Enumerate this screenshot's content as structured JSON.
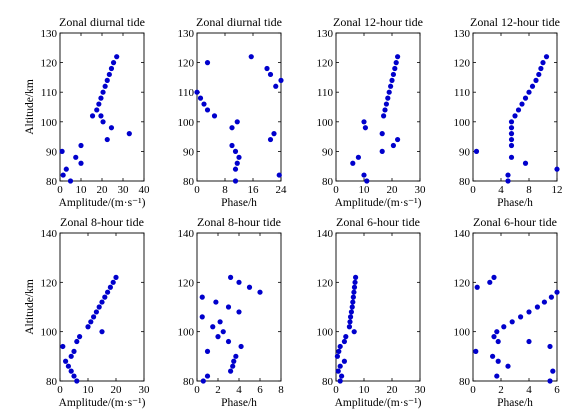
{
  "style": {
    "point_color": "#0000cc",
    "axis_color": "#000000",
    "background": "#ffffff"
  },
  "chart_data": [
    {
      "type": "scatter",
      "title": "Zonal diurnal tide",
      "xlabel": "Amplitude/(m·s⁻¹)",
      "ylabel": "Altitude/km",
      "xlim": [
        0,
        40
      ],
      "ylim": [
        80,
        130
      ],
      "xticks": [
        0,
        10,
        20,
        30,
        40
      ],
      "yticks": [
        80,
        90,
        100,
        110,
        120,
        130
      ],
      "points": [
        [
          27,
          122
        ],
        [
          25.5,
          120
        ],
        [
          24.5,
          118
        ],
        [
          23.5,
          116
        ],
        [
          22.5,
          114
        ],
        [
          21.5,
          112
        ],
        [
          20.5,
          110
        ],
        [
          19.5,
          108
        ],
        [
          18.5,
          106
        ],
        [
          17.5,
          104
        ],
        [
          15.5,
          102
        ],
        [
          19.5,
          102
        ],
        [
          20.5,
          100
        ],
        [
          33,
          96
        ],
        [
          24.5,
          98
        ],
        [
          22.5,
          94
        ],
        [
          10,
          92
        ],
        [
          1,
          90
        ],
        [
          7.5,
          88
        ],
        [
          10,
          86
        ],
        [
          3,
          84
        ],
        [
          1.5,
          82
        ],
        [
          5,
          80
        ]
      ]
    },
    {
      "type": "scatter",
      "title": "Zonal diurnal tide",
      "xlabel": "Phase/h",
      "ylabel": "",
      "xlim": [
        0,
        24
      ],
      "ylim": [
        80,
        130
      ],
      "xticks": [
        0,
        8,
        16,
        24
      ],
      "yticks": [
        80,
        90,
        100,
        110,
        120,
        130
      ],
      "points": [
        [
          3,
          120
        ],
        [
          15.5,
          122
        ],
        [
          20,
          118
        ],
        [
          21,
          116
        ],
        [
          24,
          114
        ],
        [
          22.5,
          112
        ],
        [
          0,
          110
        ],
        [
          1,
          108
        ],
        [
          2,
          106
        ],
        [
          3,
          104
        ],
        [
          5,
          102
        ],
        [
          11.5,
          100
        ],
        [
          10,
          98
        ],
        [
          22,
          96
        ],
        [
          21,
          94
        ],
        [
          10,
          92
        ],
        [
          11,
          90
        ],
        [
          12,
          88
        ],
        [
          11.5,
          86
        ],
        [
          11,
          84
        ],
        [
          23.5,
          82
        ],
        [
          11,
          80
        ]
      ]
    },
    {
      "type": "scatter",
      "title": "Zonal 12-hour tide",
      "xlabel": "Amplitude/(m·s⁻¹)",
      "ylabel": "",
      "xlim": [
        0,
        30
      ],
      "ylim": [
        80,
        130
      ],
      "xticks": [
        0,
        10,
        20,
        30
      ],
      "yticks": [
        80,
        90,
        100,
        110,
        120,
        130
      ],
      "points": [
        [
          22,
          122
        ],
        [
          21.5,
          120
        ],
        [
          21,
          118
        ],
        [
          20.5,
          116
        ],
        [
          20,
          114
        ],
        [
          19.5,
          112
        ],
        [
          19,
          110
        ],
        [
          18.5,
          108
        ],
        [
          18,
          106
        ],
        [
          17.5,
          104
        ],
        [
          17,
          102
        ],
        [
          10,
          100
        ],
        [
          10.5,
          98
        ],
        [
          16.5,
          96
        ],
        [
          22,
          94
        ],
        [
          20.5,
          92
        ],
        [
          16.5,
          90
        ],
        [
          8,
          88
        ],
        [
          6,
          86
        ],
        [
          10,
          82
        ],
        [
          11,
          80
        ]
      ]
    },
    {
      "type": "scatter",
      "title": "Zonal 12-hour tide",
      "xlabel": "Phase/h",
      "ylabel": "",
      "xlim": [
        0,
        12
      ],
      "ylim": [
        80,
        130
      ],
      "xticks": [
        0,
        4,
        8,
        12
      ],
      "yticks": [
        80,
        90,
        100,
        110,
        120,
        130
      ],
      "points": [
        [
          10.5,
          122
        ],
        [
          10,
          120
        ],
        [
          9.7,
          118
        ],
        [
          9.4,
          116
        ],
        [
          9,
          114
        ],
        [
          8.5,
          112
        ],
        [
          8,
          110
        ],
        [
          7.5,
          108
        ],
        [
          7,
          106
        ],
        [
          6.5,
          104
        ],
        [
          6,
          102
        ],
        [
          5.5,
          100
        ],
        [
          5.5,
          98
        ],
        [
          5.5,
          96
        ],
        [
          5.5,
          94
        ],
        [
          5.5,
          92
        ],
        [
          0.5,
          90
        ],
        [
          5.5,
          88
        ],
        [
          7.5,
          86
        ],
        [
          12,
          84
        ],
        [
          5,
          82
        ],
        [
          5,
          80
        ]
      ]
    },
    {
      "type": "scatter",
      "title": "Zonal 8-hour tide",
      "xlabel": "Amplitude/(m·s⁻¹)",
      "ylabel": "Altitude/km",
      "xlim": [
        0,
        30
      ],
      "ylim": [
        80,
        140
      ],
      "xticks": [
        0,
        10,
        20,
        30
      ],
      "yticks": [
        80,
        100,
        120,
        140
      ],
      "points": [
        [
          20,
          122
        ],
        [
          19,
          120
        ],
        [
          18,
          118
        ],
        [
          17,
          116
        ],
        [
          16,
          114
        ],
        [
          15,
          112
        ],
        [
          14,
          110
        ],
        [
          13,
          108
        ],
        [
          12,
          106
        ],
        [
          11,
          104
        ],
        [
          10,
          102
        ],
        [
          15,
          100
        ],
        [
          7,
          98
        ],
        [
          6,
          96
        ],
        [
          1,
          94
        ],
        [
          5,
          92
        ],
        [
          4,
          90
        ],
        [
          2,
          88
        ],
        [
          3,
          86
        ],
        [
          4,
          84
        ],
        [
          5,
          82
        ],
        [
          6,
          80
        ]
      ]
    },
    {
      "type": "scatter",
      "title": "Zonal 8-hour tide",
      "xlabel": "Phase/h",
      "ylabel": "",
      "xlim": [
        0,
        8
      ],
      "ylim": [
        80,
        140
      ],
      "xticks": [
        0,
        2,
        4,
        6,
        8
      ],
      "yticks": [
        80,
        100,
        120,
        140
      ],
      "points": [
        [
          3.2,
          122
        ],
        [
          4,
          120
        ],
        [
          5,
          118
        ],
        [
          6,
          116
        ],
        [
          0.5,
          114
        ],
        [
          1.8,
          112
        ],
        [
          3,
          110
        ],
        [
          4,
          108
        ],
        [
          0.5,
          106
        ],
        [
          2.2,
          104
        ],
        [
          1.5,
          102
        ],
        [
          2.5,
          100
        ],
        [
          2,
          98
        ],
        [
          3,
          96
        ],
        [
          4.2,
          94
        ],
        [
          1,
          92
        ],
        [
          3.7,
          90
        ],
        [
          3.5,
          88
        ],
        [
          3.4,
          86
        ],
        [
          3.2,
          84
        ],
        [
          1,
          82
        ],
        [
          0.6,
          80
        ]
      ]
    },
    {
      "type": "scatter",
      "title": "Zonal 6-hour tide",
      "xlabel": "Amplitude/(m·s⁻¹)",
      "ylabel": "",
      "xlim": [
        0,
        30
      ],
      "ylim": [
        80,
        140
      ],
      "xticks": [
        0,
        10,
        20,
        30
      ],
      "yticks": [
        80,
        100,
        120,
        140
      ],
      "points": [
        [
          7,
          122
        ],
        [
          6.8,
          120
        ],
        [
          6.6,
          118
        ],
        [
          6.4,
          116
        ],
        [
          6.2,
          114
        ],
        [
          6,
          112
        ],
        [
          5.8,
          110
        ],
        [
          5.5,
          108
        ],
        [
          5.2,
          106
        ],
        [
          5,
          104
        ],
        [
          4.8,
          102
        ],
        [
          6.5,
          100
        ],
        [
          3.5,
          98
        ],
        [
          3,
          96
        ],
        [
          1.5,
          94
        ],
        [
          1,
          92
        ],
        [
          0.5,
          90
        ],
        [
          3,
          88
        ],
        [
          1.5,
          86
        ],
        [
          0.8,
          84
        ],
        [
          2,
          82
        ],
        [
          1.5,
          80
        ]
      ]
    },
    {
      "type": "scatter",
      "title": "Zonal 6-hour tide",
      "xlabel": "Phase/h",
      "ylabel": "",
      "xlim": [
        0,
        6
      ],
      "ylim": [
        80,
        140
      ],
      "xticks": [
        0,
        2,
        4,
        6
      ],
      "yticks": [
        80,
        100,
        120,
        140
      ],
      "points": [
        [
          1.5,
          122
        ],
        [
          1.2,
          120
        ],
        [
          0.3,
          118
        ],
        [
          6,
          116
        ],
        [
          5.6,
          114
        ],
        [
          5.1,
          112
        ],
        [
          4.6,
          110
        ],
        [
          4,
          108
        ],
        [
          3.4,
          106
        ],
        [
          2.8,
          104
        ],
        [
          2.2,
          102
        ],
        [
          1.7,
          100
        ],
        [
          1.5,
          98
        ],
        [
          1.8,
          96
        ],
        [
          4,
          96
        ],
        [
          5.5,
          94
        ],
        [
          0.2,
          92
        ],
        [
          1.4,
          90
        ],
        [
          1.8,
          88
        ],
        [
          2.5,
          86
        ],
        [
          5.7,
          84
        ],
        [
          1.7,
          82
        ],
        [
          5.5,
          80
        ]
      ]
    }
  ]
}
